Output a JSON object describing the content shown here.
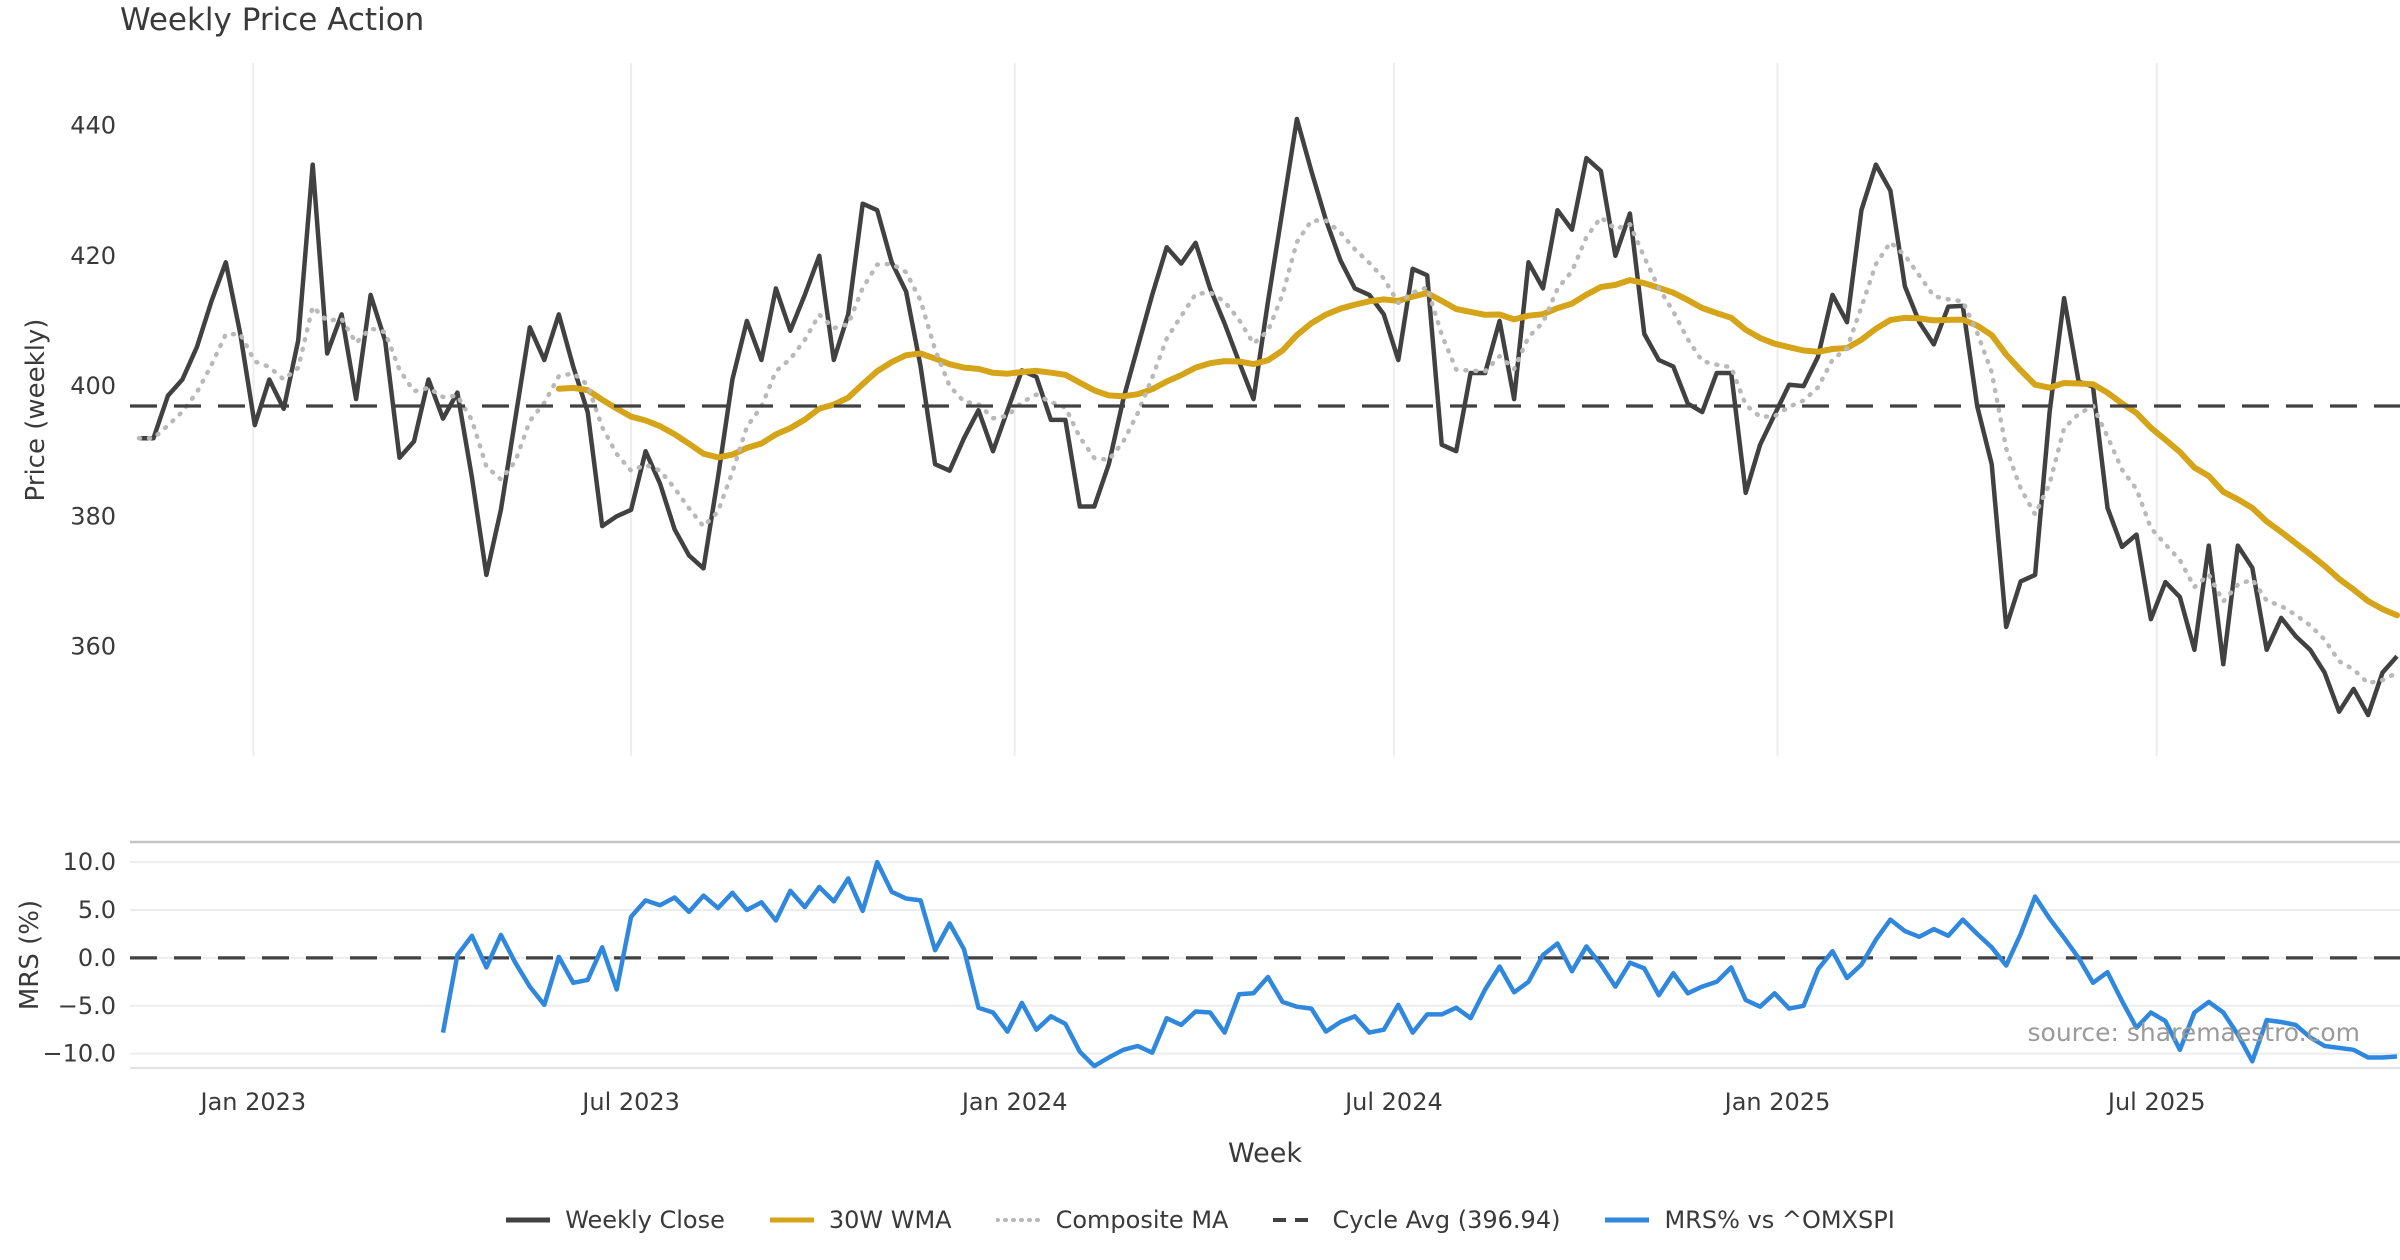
{
  "chart": {
    "title": "Weekly Price Action",
    "xlabel": "Week",
    "source": "source: sharemaestro.com",
    "price_panel": {
      "ylabel": "Price (weekly)",
      "yticks": [
        440,
        420,
        400,
        380,
        360
      ],
      "ytick_labels": [
        "440",
        "420",
        "400",
        "380",
        "360"
      ],
      "ylim": [
        343.2,
        449.6
      ],
      "cycle_avg": 396.94
    },
    "mrs_panel": {
      "ylabel": "MRS (%)",
      "yticks": [
        10,
        5,
        0,
        -5,
        -10
      ],
      "ytick_labels": [
        "10.0",
        "5.0",
        "0.0",
        "−5.0",
        "−10.0"
      ],
      "ylim": [
        -11.5,
        12.1
      ],
      "zero_line": 0
    },
    "colors": {
      "close": "#414141",
      "wma": "#d6a419",
      "composite": "#b9b9b9",
      "cycle": "#414141",
      "mrs": "#2f88dd",
      "grid": "#ededed",
      "panel_border_top": "#c4c4c4",
      "panel_border_bottom": "#e2e2e2"
    }
  },
  "chart_data": {
    "type": "line",
    "x_unit": "week_index",
    "n_weeks": 157,
    "xticks": {
      "positions": [
        7.9,
        34,
        60.5,
        86.7,
        113.2,
        139.4
      ],
      "labels": [
        "Jan 2023",
        "Jul 2023",
        "Jan 2024",
        "Jul 2024",
        "Jan 2025",
        "Jul 2025"
      ]
    },
    "series": [
      {
        "name": "Weekly Close",
        "style": "solid",
        "color": "#414141",
        "start_index": 0,
        "values": [
          392,
          392,
          398.5,
          401,
          406,
          413,
          419,
          408,
          394,
          401,
          396.5,
          407,
          434,
          405,
          411,
          398,
          414,
          407,
          389,
          391.5,
          401,
          395,
          399,
          386,
          371,
          381,
          395,
          409,
          404,
          411,
          403,
          396,
          378.5,
          380,
          381,
          390,
          385,
          378,
          374,
          372,
          386,
          401,
          410,
          404,
          415,
          408.5,
          414,
          420,
          404,
          411,
          428,
          427,
          419,
          414.5,
          403,
          388,
          387,
          392,
          396.3,
          390,
          396.3,
          402.4,
          401.4,
          394.8,
          394.8,
          381.5,
          381.5,
          388,
          398,
          406,
          414,
          421.3,
          418.8,
          422,
          415,
          409.6,
          403.7,
          398,
          413,
          427,
          441,
          433,
          425.5,
          419.3,
          415,
          414,
          411,
          404,
          418,
          417,
          391,
          390,
          402,
          402,
          410,
          398,
          419,
          415,
          427,
          424,
          435,
          433,
          420,
          426.5,
          408,
          404,
          403,
          397.3,
          396,
          402,
          402,
          383.6,
          391,
          395.6,
          400.2,
          400,
          404.5,
          414,
          409.8,
          427,
          434,
          430,
          415.3,
          409.8,
          406.4,
          412.2,
          412.3,
          396.9,
          388,
          363,
          370,
          371,
          396,
          413.5,
          400.7,
          399.9,
          381.3,
          375.3,
          377.2,
          364.2,
          369.9,
          367.6,
          359.5,
          375.5,
          357.3,
          375.5,
          372.1,
          359.5,
          364.4,
          361.6,
          359.5,
          356,
          350,
          353.5,
          349.5,
          356,
          358.5
        ]
      },
      {
        "name": "30W WMA",
        "style": "solid",
        "color": "#d6a419",
        "derived": "linear_weighted_ma",
        "window": 30,
        "source_series": 0
      },
      {
        "name": "Composite MA",
        "style": "dotted",
        "color": "#b9b9b9",
        "derived": "ema",
        "alpha": 0.3,
        "source_series": 0
      },
      {
        "name": "Cycle Avg (396.94)",
        "style": "dashed",
        "color": "#414141",
        "constant": 396.94
      },
      {
        "name": "MRS% vs ^OMXSPI",
        "style": "solid",
        "color": "#2f88dd",
        "start_index": 21,
        "values": [
          -7.8,
          0.3,
          2.3,
          -1.0,
          2.4,
          -0.5,
          -3.0,
          -4.9,
          0.1,
          -2.6,
          -2.3,
          1.1,
          -3.3,
          4.3,
          6.0,
          5.5,
          6.3,
          4.8,
          6.5,
          5.2,
          6.8,
          5.0,
          5.8,
          3.9,
          7.0,
          5.3,
          7.4,
          5.9,
          8.3,
          4.9,
          10.0,
          6.9,
          6.2,
          6.0,
          0.8,
          3.6,
          0.9,
          -5.2,
          -5.7,
          -7.7,
          -4.7,
          -7.5,
          -6.1,
          -6.9,
          -9.8,
          -11.3,
          -10.4,
          -9.6,
          -9.2,
          -9.9,
          -6.3,
          -7.0,
          -5.6,
          -5.7,
          -7.8,
          -3.8,
          -3.7,
          -2.0,
          -4.6,
          -5.1,
          -5.3,
          -7.7,
          -6.7,
          -6.1,
          -7.8,
          -7.5,
          -4.9,
          -7.8,
          -5.9,
          -5.9,
          -5.2,
          -6.3,
          -3.3,
          -0.9,
          -3.6,
          -2.5,
          0.3,
          1.5,
          -1.4,
          1.2,
          -0.7,
          -3.0,
          -0.5,
          -1.1,
          -3.9,
          -1.6,
          -3.7,
          -3.0,
          -2.5,
          -1.0,
          -4.4,
          -5.1,
          -3.7,
          -5.3,
          -5.0,
          -1.2,
          0.7,
          -2.1,
          -0.7,
          1.9,
          4.0,
          2.8,
          2.2,
          3.0,
          2.3,
          4.0,
          2.5,
          1.1,
          -0.8,
          2.5,
          6.4,
          4.1,
          2.1,
          0.0,
          -2.6,
          -1.5,
          -4.5,
          -7.3,
          -5.7,
          -6.6,
          -9.6,
          -5.7,
          -4.6,
          -5.7,
          -8.0,
          -10.8,
          -6.5,
          -6.7,
          -7.0,
          -8.3,
          -9.2,
          -9.4,
          -9.6,
          -10.4,
          -10.4,
          -10.3
        ]
      }
    ]
  },
  "legend": {
    "items": [
      {
        "label": "Weekly Close",
        "swatch": "solid",
        "color": "#414141"
      },
      {
        "label": "30W WMA",
        "swatch": "solid",
        "color": "#d6a419"
      },
      {
        "label": "Composite MA",
        "swatch": "dotted",
        "color": "#b9b9b9"
      },
      {
        "label": "Cycle Avg (396.94)",
        "swatch": "dashed",
        "color": "#414141"
      },
      {
        "label": "MRS% vs ^OMXSPI",
        "swatch": "solid",
        "color": "#2f88dd"
      }
    ]
  }
}
